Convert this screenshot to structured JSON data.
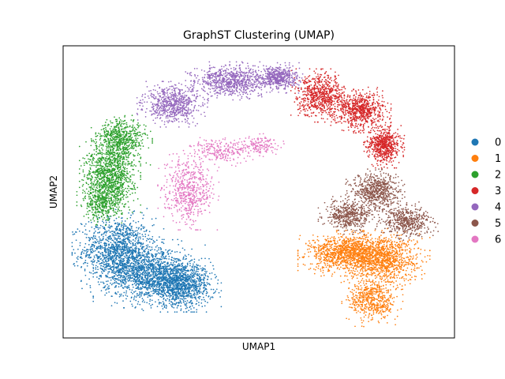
{
  "chart_data": {
    "type": "scatter",
    "title": "GraphST Clustering (UMAP)",
    "xlabel": "UMAP1",
    "ylabel": "UMAP2",
    "x_ticks": [],
    "y_ticks": [],
    "grid": false,
    "legend_position": "right",
    "xlim": [
      0,
      100
    ],
    "ylim": [
      0,
      100
    ],
    "series": [
      {
        "name": "0",
        "color": "#1f77b4",
        "point_count": 3600,
        "blobs": [
          {
            "cx": 14,
            "cy": 30,
            "rx": 9,
            "ry": 11,
            "w": 0.35
          },
          {
            "cx": 22,
            "cy": 22,
            "rx": 11,
            "ry": 9,
            "w": 0.35
          },
          {
            "cx": 30,
            "cy": 18,
            "rx": 8,
            "ry": 7,
            "w": 0.3
          }
        ]
      },
      {
        "name": "1",
        "color": "#ff7f0e",
        "point_count": 2700,
        "blobs": [
          {
            "cx": 73,
            "cy": 29,
            "rx": 10,
            "ry": 6,
            "w": 0.45
          },
          {
            "cx": 82,
            "cy": 27,
            "rx": 9,
            "ry": 8,
            "w": 0.35
          },
          {
            "cx": 79,
            "cy": 13,
            "rx": 6,
            "ry": 7,
            "w": 0.2
          }
        ]
      },
      {
        "name": "2",
        "color": "#2ca02c",
        "point_count": 2000,
        "blobs": [
          {
            "cx": 12,
            "cy": 56,
            "rx": 6,
            "ry": 10,
            "w": 0.5
          },
          {
            "cx": 15,
            "cy": 68,
            "rx": 6,
            "ry": 7,
            "w": 0.3
          },
          {
            "cx": 10,
            "cy": 46,
            "rx": 5,
            "ry": 6,
            "w": 0.2
          }
        ]
      },
      {
        "name": "3",
        "color": "#d62728",
        "point_count": 2000,
        "blobs": [
          {
            "cx": 66,
            "cy": 83,
            "rx": 6,
            "ry": 7,
            "w": 0.35
          },
          {
            "cx": 76,
            "cy": 78,
            "rx": 6,
            "ry": 6,
            "w": 0.35
          },
          {
            "cx": 82,
            "cy": 66,
            "rx": 4,
            "ry": 6,
            "w": 0.3
          }
        ]
      },
      {
        "name": "4",
        "color": "#9467bd",
        "point_count": 1900,
        "blobs": [
          {
            "cx": 28,
            "cy": 80,
            "rx": 7,
            "ry": 6,
            "w": 0.35
          },
          {
            "cx": 43,
            "cy": 88,
            "rx": 9,
            "ry": 5,
            "w": 0.4
          },
          {
            "cx": 55,
            "cy": 89,
            "rx": 5,
            "ry": 4,
            "w": 0.25
          }
        ]
      },
      {
        "name": "5",
        "color": "#8c564b",
        "point_count": 1600,
        "blobs": [
          {
            "cx": 80,
            "cy": 50,
            "rx": 6,
            "ry": 6,
            "w": 0.4
          },
          {
            "cx": 73,
            "cy": 42,
            "rx": 6,
            "ry": 5,
            "w": 0.3
          },
          {
            "cx": 88,
            "cy": 40,
            "rx": 6,
            "ry": 5,
            "w": 0.3
          }
        ]
      },
      {
        "name": "6",
        "color": "#e377c2",
        "point_count": 950,
        "blobs": [
          {
            "cx": 32,
            "cy": 50,
            "rx": 6,
            "ry": 10,
            "w": 0.6
          },
          {
            "cx": 40,
            "cy": 64,
            "rx": 8,
            "ry": 4,
            "w": 0.25
          },
          {
            "cx": 50,
            "cy": 66,
            "rx": 5,
            "ry": 3,
            "w": 0.15
          }
        ]
      }
    ]
  }
}
